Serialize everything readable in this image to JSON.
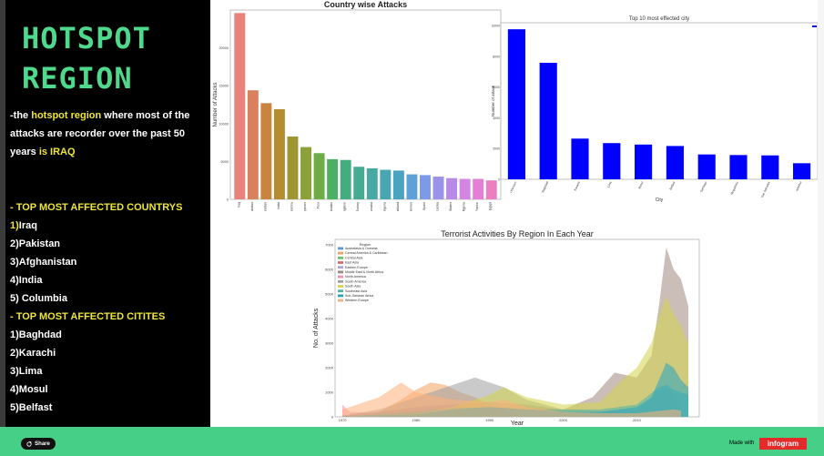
{
  "sidebar": {
    "title_line1": "HOTSPOT",
    "title_line2": "REGION",
    "intro_pre": "-the ",
    "intro_highlight": "hotspot region",
    "intro_mid": " where most of the attacks are recorder over the past 50 years ",
    "intro_country": "is IRAQ",
    "countries_heading": "- TOP MOST AFFECTED COUNTRYS",
    "countries": [
      "1)Iraq",
      "2)Pakistan",
      "3)Afghanistan",
      "4)India",
      "5) Columbia"
    ],
    "cities_heading": "- TOP MOST AFFECTED CITITES",
    "cities": [
      "1)Baghdad",
      "2)Karachi",
      "3)Lima",
      "4)Mosul",
      "5)Belfast"
    ]
  },
  "footer": {
    "share_label": "Share",
    "made_with": "Made with",
    "brand": "infogram",
    "share_icon": "share-icon"
  },
  "colors": {
    "accent_green": "#4fd98c",
    "highlight_yellow": "#f0e639",
    "footer": "#46cf87",
    "brand_red": "#e52a2a"
  },
  "chart_data": [
    {
      "type": "bar",
      "title": "Country wise Attacks",
      "xlabel": "",
      "ylabel": "Number of Attacks",
      "ylim": [
        0,
        25000
      ],
      "yticks": [
        "0",
        "5000",
        "10000",
        "15000",
        "20000"
      ],
      "categories": [
        "Iraq",
        "Pakistan",
        "Afghanistan",
        "India",
        "Colombia",
        "Philippines",
        "Peru",
        "El Salvador",
        "United Kingdom",
        "Turkey",
        "Somalia",
        "Nigeria",
        "Thailand",
        "Yemen",
        "Spain",
        "Sri Lanka",
        "United States",
        "Algeria",
        "France",
        "Egypt"
      ],
      "values": [
        24600,
        14400,
        12700,
        11900,
        8300,
        6900,
        6100,
        5300,
        5200,
        4300,
        4100,
        3900,
        3800,
        3300,
        3200,
        3000,
        2800,
        2700,
        2700,
        2500
      ]
    },
    {
      "type": "bar",
      "title": "Top 10 most effected city",
      "xlabel": "City",
      "ylabel": "Number of attack",
      "ylim": [
        0,
        10200
      ],
      "yticks": [
        "0",
        "2000",
        "4000",
        "6000",
        "8000",
        "10000"
      ],
      "categories": [
        "Unknown",
        "Baghdad",
        "Karachi",
        "Lima",
        "Mosul",
        "Belfast",
        "Santiago",
        "Mogadishu",
        "San Salvador",
        "Istanbul"
      ],
      "values": [
        9775,
        7589,
        2652,
        2359,
        2265,
        2171,
        1621,
        1581,
        1558,
        1048
      ],
      "color": "#0000ff"
    },
    {
      "type": "area",
      "title": "Terrorist Activities By Region In Each Year",
      "xlabel": "Year",
      "ylabel": "No. of Attacks",
      "legend_title": "Region",
      "legend_position": "top-left",
      "ylim": [
        0,
        7000
      ],
      "xlim": [
        1970,
        2017
      ],
      "xticks": [
        "1970",
        "1980",
        "1990",
        "2000",
        "2010"
      ],
      "yticks": [
        "0",
        "1000",
        "2000",
        "3000",
        "4000",
        "5000",
        "6000",
        "7000"
      ],
      "series": [
        {
          "name": "Australasia & Oceania",
          "color": "#5b9bd5",
          "points": [
            [
              1970,
              0
            ],
            [
              1990,
              20
            ],
            [
              2010,
              10
            ],
            [
              2016,
              20
            ]
          ]
        },
        {
          "name": "Central America & Caribbean",
          "color": "#f4a261",
          "points": [
            [
              1970,
              50
            ],
            [
              1975,
              200
            ],
            [
              1978,
              700
            ],
            [
              1980,
              1100
            ],
            [
              1982,
              1400
            ],
            [
              1984,
              1300
            ],
            [
              1986,
              1000
            ],
            [
              1988,
              800
            ],
            [
              1990,
              500
            ],
            [
              1992,
              200
            ],
            [
              1995,
              60
            ],
            [
              2000,
              20
            ],
            [
              2010,
              10
            ],
            [
              2016,
              10
            ]
          ]
        },
        {
          "name": "Central Asia",
          "color": "#6ac36a",
          "points": [
            [
              1970,
              0
            ],
            [
              1992,
              80
            ],
            [
              1995,
              40
            ],
            [
              2000,
              20
            ],
            [
              2010,
              20
            ],
            [
              2016,
              10
            ]
          ]
        },
        {
          "name": "East Asia",
          "color": "#e06666",
          "points": [
            [
              1970,
              30
            ],
            [
              1980,
              50
            ],
            [
              1990,
              60
            ],
            [
              2000,
              40
            ],
            [
              2010,
              30
            ],
            [
              2016,
              40
            ]
          ]
        },
        {
          "name": "Eastern Europe",
          "color": "#b39ddb",
          "points": [
            [
              1970,
              10
            ],
            [
              1990,
              100
            ],
            [
              1995,
              400
            ],
            [
              2000,
              300
            ],
            [
              2005,
              250
            ],
            [
              2010,
              300
            ],
            [
              2014,
              1200
            ],
            [
              2015,
              900
            ],
            [
              2016,
              400
            ]
          ]
        },
        {
          "name": "Middle East & North Africa",
          "color": "#a1887f",
          "points": [
            [
              1970,
              50
            ],
            [
              1975,
              200
            ],
            [
              1980,
              400
            ],
            [
              1985,
              500
            ],
            [
              1990,
              600
            ],
            [
              1995,
              500
            ],
            [
              2000,
              300
            ],
            [
              2004,
              800
            ],
            [
              2007,
              1800
            ],
            [
              2010,
              1600
            ],
            [
              2012,
              2500
            ],
            [
              2013,
              4500
            ],
            [
              2014,
              6900
            ],
            [
              2015,
              6000
            ],
            [
              2016,
              5600
            ],
            [
              2017,
              4500
            ]
          ]
        },
        {
          "name": "North America",
          "color": "#f48fb1",
          "points": [
            [
              1970,
              500
            ],
            [
              1971,
              200
            ],
            [
              1975,
              150
            ],
            [
              1980,
              100
            ],
            [
              1990,
              60
            ],
            [
              2000,
              40
            ],
            [
              2010,
              40
            ],
            [
              2016,
              100
            ]
          ]
        },
        {
          "name": "South America",
          "color": "#9e9e9e",
          "points": [
            [
              1970,
              50
            ],
            [
              1975,
              300
            ],
            [
              1980,
              800
            ],
            [
              1984,
              1200
            ],
            [
              1988,
              1600
            ],
            [
              1990,
              1400
            ],
            [
              1992,
              1200
            ],
            [
              1995,
              700
            ],
            [
              2000,
              300
            ],
            [
              2010,
              200
            ],
            [
              2016,
              150
            ]
          ]
        },
        {
          "name": "South Asia",
          "color": "#d4d44a",
          "points": [
            [
              1970,
              10
            ],
            [
              1975,
              50
            ],
            [
              1980,
              150
            ],
            [
              1985,
              400
            ],
            [
              1990,
              900
            ],
            [
              1992,
              1200
            ],
            [
              1995,
              800
            ],
            [
              2000,
              500
            ],
            [
              2005,
              600
            ],
            [
              2008,
              1500
            ],
            [
              2010,
              2000
            ],
            [
              2012,
              3000
            ],
            [
              2013,
              4100
            ],
            [
              2014,
              4900
            ],
            [
              2015,
              4200
            ],
            [
              2016,
              3700
            ],
            [
              2017,
              3000
            ]
          ]
        },
        {
          "name": "Southeast Asia",
          "color": "#4db6ac",
          "points": [
            [
              1970,
              20
            ],
            [
              1980,
              200
            ],
            [
              1985,
              350
            ],
            [
              1990,
              400
            ],
            [
              1995,
              300
            ],
            [
              2000,
              300
            ],
            [
              2005,
              300
            ],
            [
              2010,
              500
            ],
            [
              2013,
              1200
            ],
            [
              2014,
              1300
            ],
            [
              2015,
              1100
            ],
            [
              2016,
              1000
            ],
            [
              2017,
              900
            ]
          ]
        },
        {
          "name": "Sub-Saharan Africa",
          "color": "#26a4c2",
          "points": [
            [
              1970,
              20
            ],
            [
              1980,
              100
            ],
            [
              1985,
              300
            ],
            [
              1990,
              400
            ],
            [
              1995,
              300
            ],
            [
              2000,
              200
            ],
            [
              2005,
              200
            ],
            [
              2010,
              400
            ],
            [
              2012,
              800
            ],
            [
              2014,
              2200
            ],
            [
              2015,
              2000
            ],
            [
              2016,
              1500
            ],
            [
              2017,
              1200
            ]
          ]
        },
        {
          "name": "Western Europe",
          "color": "#ffb07a",
          "points": [
            [
              1970,
              300
            ],
            [
              1975,
              800
            ],
            [
              1978,
              1400
            ],
            [
              1980,
              1000
            ],
            [
              1985,
              700
            ],
            [
              1990,
              600
            ],
            [
              1992,
              700
            ],
            [
              1995,
              400
            ],
            [
              2000,
              200
            ],
            [
              2005,
              150
            ],
            [
              2010,
              150
            ],
            [
              2015,
              300
            ],
            [
              2016,
              250
            ]
          ]
        }
      ]
    }
  ]
}
